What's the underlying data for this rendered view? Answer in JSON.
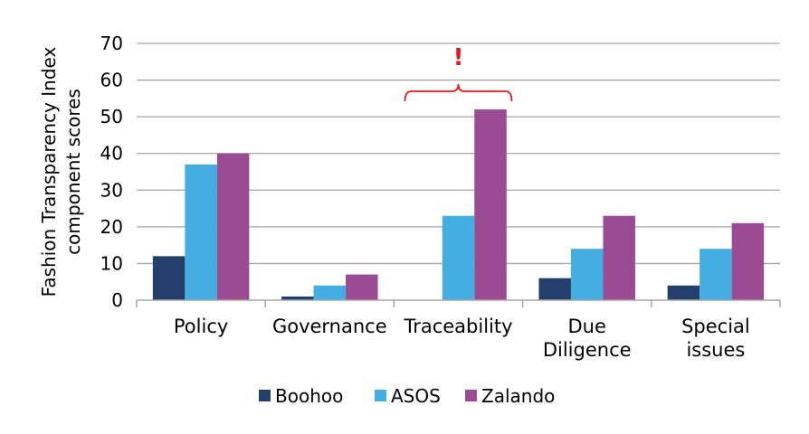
{
  "chart_data": {
    "type": "bar",
    "title": "",
    "xlabel": "",
    "ylabel_lines": [
      "Fashion Transparency Index",
      "component scores"
    ],
    "ylim": [
      0,
      70
    ],
    "yticks": [
      0,
      10,
      20,
      30,
      40,
      50,
      60,
      70
    ],
    "grid": true,
    "legend_position": "bottom",
    "categories": [
      [
        "Policy"
      ],
      [
        "Governance"
      ],
      [
        "Traceability"
      ],
      [
        "Due",
        "Diligence"
      ],
      [
        "Special",
        "issues"
      ]
    ],
    "series": [
      {
        "name": "Boohoo",
        "color": "#243f6b",
        "values": [
          12,
          1,
          0,
          6,
          4
        ]
      },
      {
        "name": "ASOS",
        "color": "#44ade2",
        "values": [
          37,
          4,
          23,
          14,
          14
        ]
      },
      {
        "name": "Zalando",
        "color": "#9a4b93",
        "values": [
          40,
          7,
          52,
          23,
          21
        ]
      }
    ],
    "annotation": {
      "text": "!",
      "color": "#e8161a",
      "bracket_category": 2
    }
  }
}
